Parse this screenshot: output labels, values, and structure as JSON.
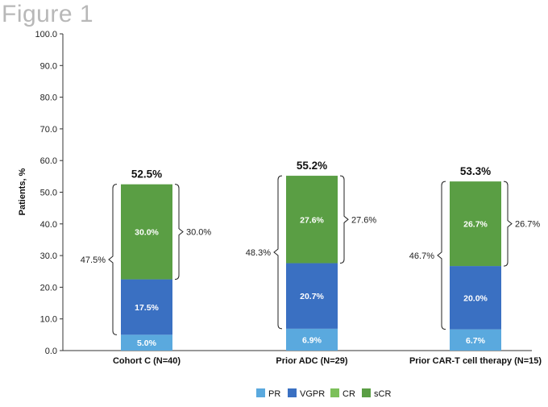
{
  "figure_label": "Figure 1",
  "chart_data": {
    "type": "bar",
    "stacked": true,
    "categories": [
      "Cohort C (N=40)",
      "Prior ADC (N=29)",
      "Prior CAR-T cell therapy (N=15)"
    ],
    "series": [
      {
        "name": "PR",
        "color": "#5aa9de",
        "values": [
          5.0,
          6.9,
          6.7
        ],
        "labels": [
          "5.0%",
          "6.9%",
          "6.7%"
        ]
      },
      {
        "name": "VGPR",
        "color": "#3a70c2",
        "values": [
          17.5,
          20.7,
          20.0
        ],
        "labels": [
          "17.5%",
          "20.7%",
          "20.0%"
        ]
      },
      {
        "name": "CR",
        "color": "#7cc05a",
        "values": [
          0,
          0,
          0
        ],
        "labels": [
          "",
          "",
          ""
        ]
      },
      {
        "name": "sCR",
        "color": "#5a9e44",
        "values": [
          30.0,
          27.6,
          26.7
        ],
        "labels": [
          "30.0%",
          "27.6%",
          "26.7%"
        ]
      }
    ],
    "totals": [
      "52.5%",
      "55.2%",
      "53.3%"
    ],
    "left_bracket_labels": [
      "47.5%",
      "48.3%",
      "46.7%"
    ],
    "right_bracket_labels": [
      "30.0%",
      "27.6%",
      "26.7%"
    ],
    "ylabel": "Patients, %",
    "xlabel": "",
    "ylim": [
      0,
      100
    ],
    "yticks": [
      0,
      10,
      20,
      30,
      40,
      50,
      60,
      70,
      80,
      90,
      100
    ],
    "ytick_labels": [
      "0.0",
      "10.0",
      "20.0",
      "30.0",
      "40.0",
      "50.0",
      "60.0",
      "70.0",
      "80.0",
      "90.0",
      "100.0"
    ],
    "legend": [
      "PR",
      "VGPR",
      "CR",
      "sCR"
    ],
    "legend_position": "bottom-center",
    "grid": false
  }
}
